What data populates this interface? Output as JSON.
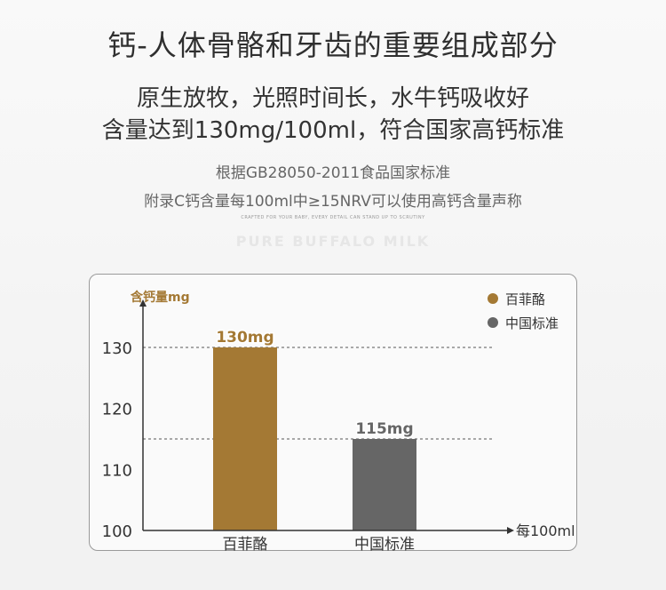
{
  "header": {
    "title": "钙-人体骨骼和牙齿的重要组成部分",
    "subtitle_line1": "原生放牧，光照时间长，水牛钙吸收好",
    "subtitle_line2": "含量达到130mg/100ml，符合国家高钙标准",
    "note_line1": "根据GB28050-2011食品国家标准",
    "note_line2": "附录C钙含量每100ml中≥15NRV可以使用高钙含量声称",
    "crafted": "CRAFTED FOR YOUR BABY, EVERY DETAIL CAN STAND UP TO SCRUTINY",
    "brand": "PURE BUFFALO MILK"
  },
  "chart_data": {
    "type": "bar",
    "title": "",
    "ylabel": "含钙量mg",
    "xlabel": "每100ml",
    "categories": [
      "百菲酪",
      "中国标准"
    ],
    "values": [
      130,
      115
    ],
    "value_labels": [
      "130mg",
      "115mg"
    ],
    "colors": [
      "#a47934",
      "#666666"
    ],
    "ylim": [
      100,
      130
    ],
    "yticks": [
      "100",
      "110",
      "120",
      "130"
    ],
    "legend": [
      {
        "name": "百菲酪",
        "color": "#a47934"
      },
      {
        "name": "中国标准",
        "color": "#666666"
      }
    ],
    "legend_position": "top-right",
    "reference_lines": [
      130,
      115
    ]
  }
}
